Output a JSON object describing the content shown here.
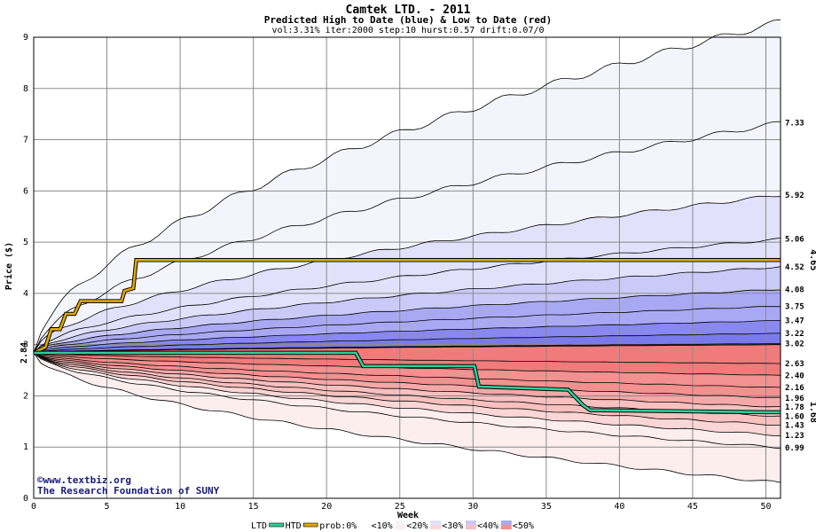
{
  "chart_data": {
    "type": "area",
    "title": "Camtek LTD. - 2011",
    "subtitle": "Predicted High to Date (blue) &  Low to Date (red)",
    "params": "vol:3.31% iter:2000 step:10 hurst:0.57 drift:0.07/0",
    "xlabel": "Week",
    "ylabel": "Price ($)",
    "xlim": [
      0,
      51
    ],
    "ylim": [
      0,
      9
    ],
    "xticks": [
      0,
      5,
      10,
      15,
      20,
      25,
      30,
      35,
      40,
      45,
      50
    ],
    "yticks": [
      0,
      1,
      2,
      3,
      4,
      5,
      6,
      7,
      8,
      9
    ],
    "start_price": 2.84,
    "start_label": "2.84",
    "grid": true,
    "band_colors": [
      "#f4f4fd",
      "#e1e1fb",
      "#cacaf8",
      "#a9a9f3",
      "#8888ef",
      "#7a7aed"
    ],
    "red_band_colors": [
      "#fdeeee",
      "#fbd6d6",
      "#f9c0c0",
      "#f6a8a8",
      "#f39090",
      "#f07b7b"
    ],
    "blue_percentiles": [
      {
        "label": "",
        "end": 9.3
      },
      {
        "label": "7.33",
        "end": 7.33
      },
      {
        "label": "5.92",
        "end": 5.92
      },
      {
        "label": "5.06",
        "end": 5.06
      },
      {
        "label": "4.52",
        "end": 4.52
      },
      {
        "label": "4.08",
        "end": 4.08
      },
      {
        "label": "3.75",
        "end": 3.75
      },
      {
        "label": "3.47",
        "end": 3.47
      },
      {
        "label": "3.22",
        "end": 3.22
      },
      {
        "label": "3.02",
        "end": 3.02
      }
    ],
    "red_percentiles": [
      {
        "label": "2.63",
        "end": 2.63
      },
      {
        "label": "2.40",
        "end": 2.4
      },
      {
        "label": "2.16",
        "end": 2.16
      },
      {
        "label": "1.96",
        "end": 1.96
      },
      {
        "label": "1.78",
        "end": 1.78
      },
      {
        "label": "1.60",
        "end": 1.6
      },
      {
        "label": "1.43",
        "end": 1.43
      },
      {
        "label": "1.23",
        "end": 1.23
      },
      {
        "label": "0.99",
        "end": 0.99
      },
      {
        "label": "",
        "end": 0.3
      }
    ],
    "series": [
      {
        "name": "HTD",
        "color": "#e0a800",
        "final_label": "4.65",
        "points": [
          [
            0,
            2.84
          ],
          [
            0.8,
            2.95
          ],
          [
            1.2,
            3.3
          ],
          [
            1.8,
            3.3
          ],
          [
            2.2,
            3.6
          ],
          [
            2.8,
            3.6
          ],
          [
            3.2,
            3.85
          ],
          [
            6.0,
            3.85
          ],
          [
            6.2,
            4.05
          ],
          [
            6.8,
            4.1
          ],
          [
            7.0,
            4.65
          ],
          [
            51,
            4.65
          ]
        ]
      },
      {
        "name": "LTD",
        "color": "#2ecf9a",
        "final_label": "1.68",
        "points": [
          [
            0,
            2.84
          ],
          [
            2,
            2.84
          ],
          [
            22,
            2.84
          ],
          [
            22.5,
            2.58
          ],
          [
            30.1,
            2.58
          ],
          [
            30.4,
            2.18
          ],
          [
            36.5,
            2.12
          ],
          [
            37.5,
            1.82
          ],
          [
            38,
            1.72
          ],
          [
            50,
            1.68
          ],
          [
            51,
            1.68
          ]
        ]
      }
    ],
    "legend": {
      "ltd": "LTD",
      "htd": "HTD",
      "prob": "prob:0%",
      "items": [
        "<10%",
        "<20%",
        "<30%",
        "<40%",
        "<50%"
      ]
    },
    "credit_line1": "©www.textbiz.org",
    "credit_line2": "The Research Foundation of SUNY"
  }
}
